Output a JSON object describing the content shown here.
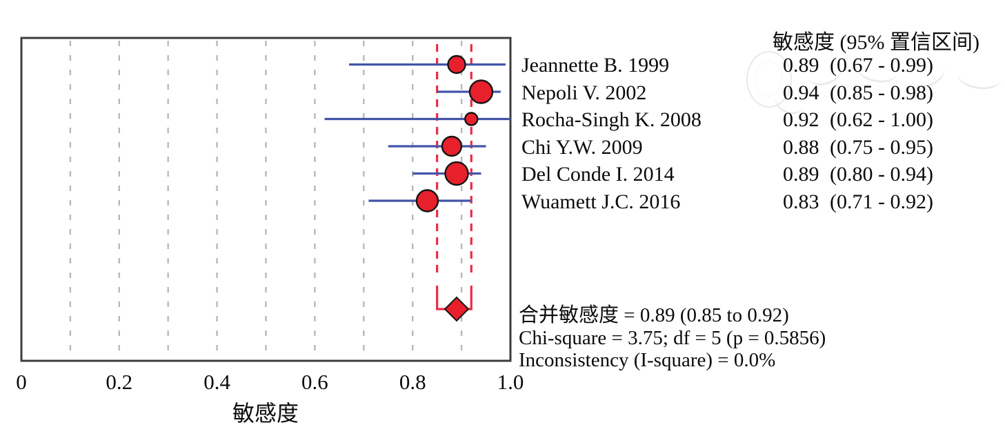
{
  "colors": {
    "marker_fill": "#e8202b",
    "marker_stroke": "#141414",
    "ci_line": "#4355a8",
    "pooled_line": "#ee2b48",
    "gridline": "#b8b8b8",
    "box_border": "#3c3c3c",
    "text": "#0b0b0b"
  },
  "right_panel": {
    "column_header": "敏感度 (95% 置信区间)"
  },
  "x_axis": {
    "title": "敏感度"
  },
  "chart_data": {
    "type": "scatter",
    "subtype": "forest-plot",
    "title": "",
    "xlabel": "敏感度",
    "ylabel": "",
    "xlim": [
      0,
      1
    ],
    "x_ticks": [
      0,
      0.2,
      0.4,
      0.6,
      0.8,
      1.0
    ],
    "x_tick_labels": [
      "0",
      "0.2",
      "0.4",
      "0.6",
      "0.8",
      "1.0"
    ],
    "grid": "vertical dashed gridlines every 0.1",
    "legend": "none",
    "column_header": "敏感度 (95% 置信区间)",
    "studies": [
      {
        "name": "Jeannette B. 1999",
        "estimate": 0.89,
        "ci_low": 0.67,
        "ci_high": 0.99,
        "estimate_label": "0.89",
        "ci_label": "(0.67 - 0.99)",
        "marker_radius": 12.5
      },
      {
        "name": "Nepoli V. 2002",
        "estimate": 0.94,
        "ci_low": 0.85,
        "ci_high": 0.98,
        "estimate_label": "0.94",
        "ci_label": "(0.85 - 0.98)",
        "marker_radius": 16.5
      },
      {
        "name": "Rocha-Singh K. 2008",
        "estimate": 0.92,
        "ci_low": 0.62,
        "ci_high": 1.0,
        "estimate_label": "0.92",
        "ci_label": "(0.62 - 1.00)",
        "marker_radius": 9
      },
      {
        "name": "Chi Y.W. 2009",
        "estimate": 0.88,
        "ci_low": 0.75,
        "ci_high": 0.95,
        "estimate_label": "0.88",
        "ci_label": "(0.75 - 0.95)",
        "marker_radius": 14
      },
      {
        "name": "Del Conde I. 2014",
        "estimate": 0.89,
        "ci_low": 0.8,
        "ci_high": 0.94,
        "estimate_label": "0.89",
        "ci_label": "(0.80 - 0.94)",
        "marker_radius": 16.5
      },
      {
        "name": "Wuamett J.C. 2016",
        "estimate": 0.83,
        "ci_low": 0.71,
        "ci_high": 0.92,
        "estimate_label": "0.83",
        "ci_label": "(0.71 - 0.92)",
        "marker_radius": 15.5
      }
    ],
    "pooled": {
      "estimate": 0.89,
      "ci_low": 0.85,
      "ci_high": 0.92,
      "summary_lines": [
        "合并敏感度  = 0.89 (0.85 to 0.92)",
        "Chi-square = 3.75; df = 5 (p = 0.5856)",
        "Inconsistency (I-square) = 0.0%"
      ]
    }
  }
}
